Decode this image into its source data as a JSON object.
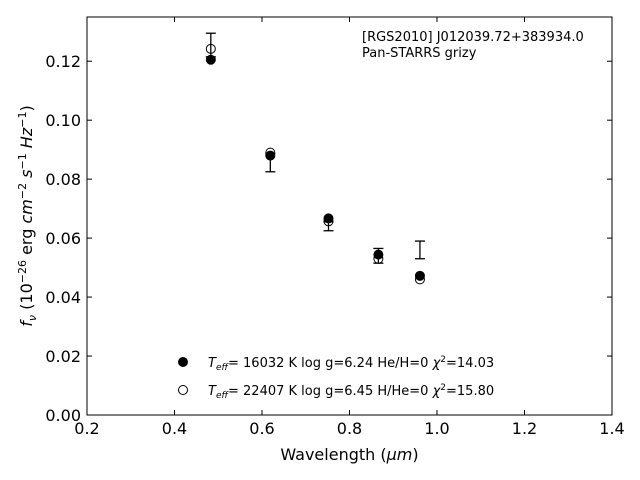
{
  "chart_data": {
    "type": "scatter",
    "annotation_lines": [
      "[RGS2010] J012039.72+383934.0",
      "Pan-STARRS grizy"
    ],
    "xlabel": {
      "text": "Wavelength (",
      "math": "μm",
      "close": ")"
    },
    "ylabel": {
      "f": "f",
      "nu": "ν",
      "open": " (10",
      "exp": "−26",
      "erg": " erg ",
      "cm": "cm",
      "cm_exp": "−2",
      "s": " s",
      "s_exp": "−1",
      "hz": " Hz",
      "hz_exp": "−1",
      "close": ")"
    },
    "xlim": [
      0.2,
      1.4
    ],
    "ylim": [
      0.0,
      0.135
    ],
    "xticks": [
      0.2,
      0.4,
      0.6,
      0.8,
      1.0,
      1.2,
      1.4
    ],
    "xtick_labels": [
      "0.2",
      "0.4",
      "0.6",
      "0.8",
      "1.0",
      "1.2",
      "1.4"
    ],
    "yticks": [
      0.0,
      0.02,
      0.04,
      0.06,
      0.08,
      0.1,
      0.12
    ],
    "ytick_labels": [
      "0.00",
      "0.02",
      "0.04",
      "0.06",
      "0.08",
      "0.10",
      "0.12"
    ],
    "grid": false,
    "legend_position": "lower-center",
    "series": [
      {
        "marker": "filled-circle",
        "x": [
          0.483,
          0.619,
          0.752,
          0.866,
          0.961
        ],
        "y": [
          0.1205,
          0.088,
          0.0667,
          0.0544,
          0.0472
        ],
        "legend": {
          "t": "T",
          "eff": "eff",
          "rest": "= 16032 K  log g=6.24  He/H=0  ",
          "chi": "χ",
          "two": "2",
          "chival": "=14.03"
        }
      },
      {
        "marker": "open-circle",
        "x": [
          0.483,
          0.619,
          0.752,
          0.866,
          0.961
        ],
        "y": [
          0.1242,
          0.089,
          0.0657,
          0.053,
          0.046
        ],
        "legend": {
          "t": "T",
          "eff": "eff",
          "rest": "= 22407 K  log g=6.45  H/He=0  ",
          "chi": "χ",
          "two": "2",
          "chival": "=15.80"
        }
      }
    ],
    "observed": {
      "marker": "errorbar",
      "x": [
        0.483,
        0.619,
        0.752,
        0.866,
        0.961
      ],
      "y": [
        0.1255,
        0.0855,
        0.064,
        0.054,
        0.056
      ],
      "yerr": [
        0.004,
        0.003,
        0.0015,
        0.0025,
        0.003
      ]
    }
  }
}
